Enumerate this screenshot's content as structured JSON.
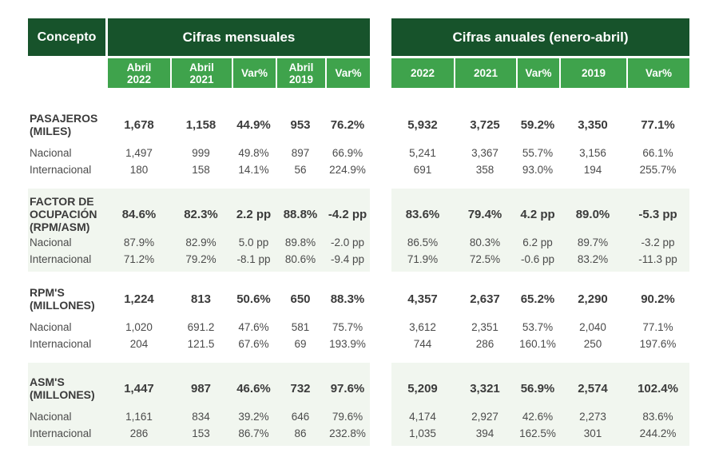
{
  "colors": {
    "dark_green": "#17532b",
    "light_green": "#3fa34c",
    "band_bg": "#f1f6ef",
    "text": "#3b3b3b"
  },
  "chart_data": {
    "type": "table",
    "concepto_header": "Concepto",
    "groups": [
      {
        "header": "Cifras mensuales",
        "columns": [
          "Abril 2022",
          "Abril 2021",
          "Var%",
          "Abril 2019",
          "Var%"
        ],
        "columns_display": [
          "Abril\n2022",
          "Abril\n2021",
          "Var%",
          "Abril\n2019",
          "Var%"
        ]
      },
      {
        "header": "Cifras anuales (enero-abril)",
        "columns": [
          "2022",
          "2021",
          "Var%",
          "2019",
          "Var%"
        ],
        "columns_display": [
          "2022",
          "2021",
          "Var%",
          "2019",
          "Var%"
        ]
      }
    ],
    "sections": [
      {
        "title": "PASAJEROS (MILES)",
        "title_display": "PASAJEROS\n(MILES)",
        "highlighted": false,
        "total": {
          "monthly": [
            "1,678",
            "1,158",
            "44.9%",
            "953",
            "76.2%"
          ],
          "annual": [
            "5,932",
            "3,725",
            "59.2%",
            "3,350",
            "77.1%"
          ]
        },
        "rows": [
          {
            "label": "Nacional",
            "monthly": [
              "1,497",
              "999",
              "49.8%",
              "897",
              "66.9%"
            ],
            "annual": [
              "5,241",
              "3,367",
              "55.7%",
              "3,156",
              "66.1%"
            ]
          },
          {
            "label": "Internacional",
            "monthly": [
              "180",
              "158",
              "14.1%",
              "56",
              "224.9%"
            ],
            "annual": [
              "691",
              "358",
              "93.0%",
              "194",
              "255.7%"
            ]
          }
        ]
      },
      {
        "title": "FACTOR DE OCUPACIÓN (RPM/ASM)",
        "title_display": "FACTOR DE\nOCUPACIÓN\n(RPM/ASM)",
        "highlighted": true,
        "total": {
          "monthly": [
            "84.6%",
            "82.3%",
            "2.2 pp",
            "88.8%",
            "-4.2 pp"
          ],
          "annual": [
            "83.6%",
            "79.4%",
            "4.2 pp",
            "89.0%",
            "-5.3 pp"
          ]
        },
        "rows": [
          {
            "label": "Nacional",
            "monthly": [
              "87.9%",
              "82.9%",
              "5.0 pp",
              "89.8%",
              "-2.0 pp"
            ],
            "annual": [
              "86.5%",
              "80.3%",
              "6.2 pp",
              "89.7%",
              "-3.2 pp"
            ]
          },
          {
            "label": "Internacional",
            "monthly": [
              "71.2%",
              "79.2%",
              "-8.1 pp",
              "80.6%",
              "-9.4 pp"
            ],
            "annual": [
              "71.9%",
              "72.5%",
              "-0.6 pp",
              "83.2%",
              "-11.3 pp"
            ]
          }
        ]
      },
      {
        "title": "RPM'S (MILLONES)",
        "title_display": "RPM'S\n(MILLONES)",
        "highlighted": false,
        "total": {
          "monthly": [
            "1,224",
            "813",
            "50.6%",
            "650",
            "88.3%"
          ],
          "annual": [
            "4,357",
            "2,637",
            "65.2%",
            "2,290",
            "90.2%"
          ]
        },
        "rows": [
          {
            "label": "Nacional",
            "monthly": [
              "1,020",
              "691.2",
              "47.6%",
              "581",
              "75.7%"
            ],
            "annual": [
              "3,612",
              "2,351",
              "53.7%",
              "2,040",
              "77.1%"
            ]
          },
          {
            "label": "Internacional",
            "monthly": [
              "204",
              "121.5",
              "67.6%",
              "69",
              "193.9%"
            ],
            "annual": [
              "744",
              "286",
              "160.1%",
              "250",
              "197.6%"
            ]
          }
        ]
      },
      {
        "title": "ASM'S (MILLONES)",
        "title_display": "ASM'S\n(MILLONES)",
        "highlighted": true,
        "total": {
          "monthly": [
            "1,447",
            "987",
            "46.6%",
            "732",
            "97.6%"
          ],
          "annual": [
            "5,209",
            "3,321",
            "56.9%",
            "2,574",
            "102.4%"
          ]
        },
        "rows": [
          {
            "label": "Nacional",
            "monthly": [
              "1,161",
              "834",
              "39.2%",
              "646",
              "79.6%"
            ],
            "annual": [
              "4,174",
              "2,927",
              "42.6%",
              "2,273",
              "83.6%"
            ]
          },
          {
            "label": "Internacional",
            "monthly": [
              "286",
              "153",
              "86.7%",
              "86",
              "232.8%"
            ],
            "annual": [
              "1,035",
              "394",
              "162.5%",
              "301",
              "244.2%"
            ]
          }
        ]
      }
    ]
  }
}
